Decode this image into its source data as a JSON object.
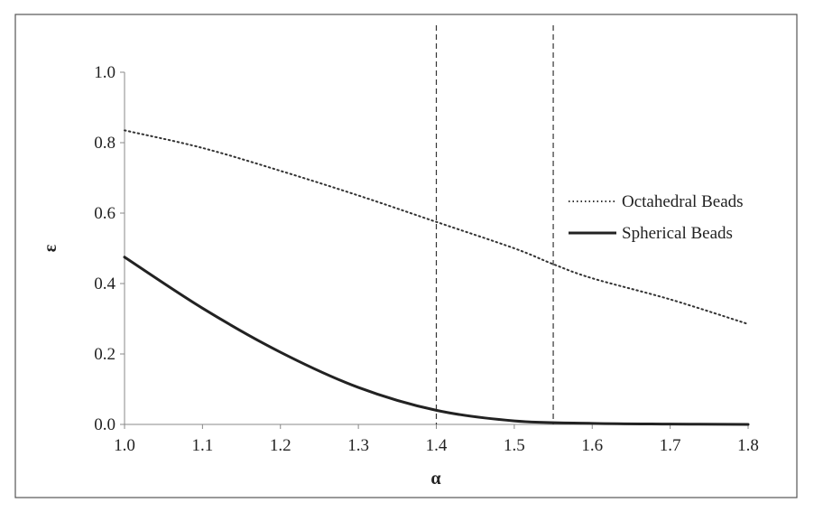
{
  "chart_data": {
    "type": "line",
    "title": "",
    "xlabel": "α",
    "ylabel": "ε",
    "xlim": [
      1.0,
      1.8
    ],
    "ylim": [
      0.0,
      1.0
    ],
    "x_ticks": [
      "1.0",
      "1.1",
      "1.2",
      "1.3",
      "1.4",
      "1.5",
      "1.6",
      "1.7",
      "1.8"
    ],
    "y_ticks": [
      "0.0",
      "0.2",
      "0.4",
      "0.6",
      "0.8",
      "1.0"
    ],
    "grid": false,
    "legend_position": "right",
    "vertical_reference_lines": [
      1.4,
      1.55
    ],
    "series": [
      {
        "name": "Octahedral Beads",
        "style": "dotted",
        "color": "#333333",
        "x": [
          1.0,
          1.1,
          1.2,
          1.3,
          1.4,
          1.5,
          1.55,
          1.6,
          1.7,
          1.8
        ],
        "y": [
          0.835,
          0.785,
          0.72,
          0.65,
          0.575,
          0.5,
          0.455,
          0.415,
          0.355,
          0.285
        ]
      },
      {
        "name": "Spherical Beads",
        "style": "solid",
        "color": "#222222",
        "x": [
          1.0,
          1.1,
          1.2,
          1.3,
          1.4,
          1.5,
          1.6,
          1.7,
          1.8
        ],
        "y": [
          0.475,
          0.33,
          0.205,
          0.105,
          0.04,
          0.01,
          0.003,
          0.001,
          0.0
        ]
      }
    ]
  }
}
